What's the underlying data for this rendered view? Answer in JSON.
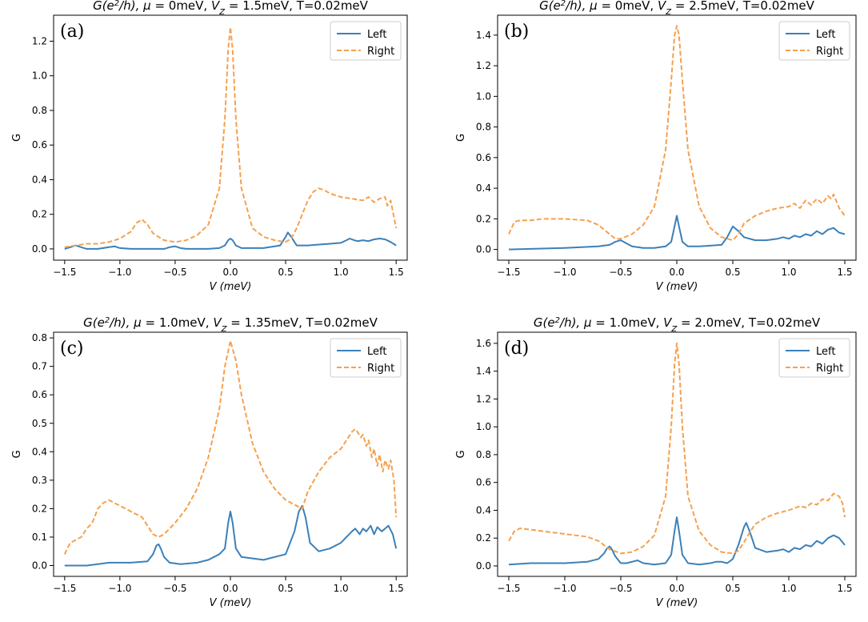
{
  "colors": {
    "left": "#3b80b9",
    "right": "#f6a04d",
    "axis": "#000000"
  },
  "chart_data": [
    {
      "type": "line",
      "panel_label": "(a)",
      "title_parts": [
        {
          "t": "G",
          "i": true
        },
        {
          "t": "(e",
          "i": true
        },
        {
          "t": "2",
          "i": true,
          "sup": true
        },
        {
          "t": "/h), ",
          "i": true
        },
        {
          "t": "μ",
          "i": true
        },
        {
          "t": " = 0meV, "
        },
        {
          "t": "V",
          "i": true
        },
        {
          "t": "Z",
          "i": true,
          "sub": true
        },
        {
          "t": " = 1.5meV, T=0.02meV"
        }
      ],
      "xlabel": "V (meV)",
      "ylabel": "G",
      "xlim": [
        -1.6,
        1.6
      ],
      "ylim": [
        -0.065,
        1.35
      ],
      "xticks": [
        -1.5,
        -1.0,
        -0.5,
        0.0,
        0.5,
        1.0,
        1.5
      ],
      "yticks": [
        0.0,
        0.2,
        0.4,
        0.6,
        0.8,
        1.0,
        1.2
      ],
      "legend": {
        "position": "upper right",
        "entries": [
          "Left",
          "Right"
        ]
      },
      "series": [
        {
          "name": "Left",
          "style": "solid",
          "x": [
            -1.5,
            -1.45,
            -1.4,
            -1.35,
            -1.3,
            -1.2,
            -1.1,
            -1.05,
            -1.0,
            -0.9,
            -0.6,
            -0.55,
            -0.5,
            -0.45,
            -0.4,
            -0.2,
            -0.1,
            -0.05,
            -0.02,
            0.0,
            0.02,
            0.05,
            0.1,
            0.3,
            0.45,
            0.5,
            0.52,
            0.55,
            0.58,
            0.6,
            0.7,
            0.8,
            0.9,
            1.0,
            1.05,
            1.08,
            1.12,
            1.15,
            1.2,
            1.25,
            1.3,
            1.35,
            1.4,
            1.45,
            1.5
          ],
          "y": [
            0.0,
            0.01,
            0.02,
            0.01,
            0.0,
            0.0,
            0.01,
            0.015,
            0.005,
            0.0,
            0.0,
            0.01,
            0.015,
            0.005,
            0.0,
            0.0,
            0.005,
            0.02,
            0.05,
            0.06,
            0.05,
            0.02,
            0.005,
            0.005,
            0.02,
            0.07,
            0.095,
            0.07,
            0.04,
            0.02,
            0.02,
            0.025,
            0.03,
            0.035,
            0.05,
            0.06,
            0.05,
            0.045,
            0.05,
            0.045,
            0.055,
            0.06,
            0.055,
            0.04,
            0.02
          ]
        },
        {
          "name": "Right",
          "style": "dashed",
          "x": [
            -1.5,
            -1.4,
            -1.3,
            -1.2,
            -1.1,
            -1.0,
            -0.9,
            -0.85,
            -0.8,
            -0.75,
            -0.7,
            -0.6,
            -0.5,
            -0.4,
            -0.3,
            -0.2,
            -0.1,
            -0.05,
            -0.02,
            0.0,
            0.02,
            0.05,
            0.1,
            0.2,
            0.3,
            0.4,
            0.5,
            0.55,
            0.6,
            0.65,
            0.7,
            0.75,
            0.8,
            0.85,
            0.9,
            1.0,
            1.1,
            1.2,
            1.25,
            1.3,
            1.35,
            1.4,
            1.42,
            1.45,
            1.5
          ],
          "y": [
            0.01,
            0.02,
            0.03,
            0.03,
            0.04,
            0.06,
            0.1,
            0.15,
            0.17,
            0.14,
            0.09,
            0.05,
            0.04,
            0.05,
            0.08,
            0.14,
            0.35,
            0.75,
            1.15,
            1.28,
            1.15,
            0.75,
            0.35,
            0.12,
            0.07,
            0.05,
            0.04,
            0.06,
            0.12,
            0.2,
            0.28,
            0.33,
            0.35,
            0.34,
            0.32,
            0.3,
            0.29,
            0.28,
            0.3,
            0.27,
            0.29,
            0.3,
            0.25,
            0.28,
            0.12
          ]
        }
      ]
    },
    {
      "type": "line",
      "panel_label": "(b)",
      "title_parts": [
        {
          "t": "G",
          "i": true
        },
        {
          "t": "(e",
          "i": true
        },
        {
          "t": "2",
          "i": true,
          "sup": true
        },
        {
          "t": "/h), ",
          "i": true
        },
        {
          "t": "μ",
          "i": true
        },
        {
          "t": " = 0meV, "
        },
        {
          "t": "V",
          "i": true
        },
        {
          "t": "Z",
          "i": true,
          "sub": true
        },
        {
          "t": " = 2.5meV, T=0.02meV"
        }
      ],
      "xlabel": "V (meV)",
      "ylabel": "G",
      "xlim": [
        -1.6,
        1.6
      ],
      "ylim": [
        -0.07,
        1.53
      ],
      "xticks": [
        -1.5,
        -1.0,
        -0.5,
        0.0,
        0.5,
        1.0,
        1.5
      ],
      "yticks": [
        0.0,
        0.2,
        0.4,
        0.6,
        0.8,
        1.0,
        1.2,
        1.4
      ],
      "legend": {
        "position": "upper right",
        "entries": [
          "Left",
          "Right"
        ]
      },
      "series": [
        {
          "name": "Left",
          "style": "solid",
          "x": [
            -1.5,
            -1.0,
            -0.7,
            -0.6,
            -0.55,
            -0.5,
            -0.45,
            -0.4,
            -0.3,
            -0.2,
            -0.1,
            -0.05,
            -0.02,
            0.0,
            0.02,
            0.05,
            0.1,
            0.2,
            0.4,
            0.45,
            0.5,
            0.55,
            0.6,
            0.7,
            0.8,
            0.9,
            0.95,
            1.0,
            1.05,
            1.1,
            1.15,
            1.2,
            1.25,
            1.3,
            1.35,
            1.4,
            1.45,
            1.5
          ],
          "y": [
            0.0,
            0.01,
            0.02,
            0.03,
            0.05,
            0.06,
            0.04,
            0.02,
            0.01,
            0.01,
            0.02,
            0.05,
            0.15,
            0.22,
            0.15,
            0.05,
            0.02,
            0.02,
            0.03,
            0.08,
            0.15,
            0.12,
            0.08,
            0.06,
            0.06,
            0.07,
            0.08,
            0.07,
            0.09,
            0.08,
            0.1,
            0.09,
            0.12,
            0.1,
            0.13,
            0.14,
            0.11,
            0.1
          ]
        },
        {
          "name": "Right",
          "style": "dashed",
          "x": [
            -1.5,
            -1.45,
            -1.4,
            -1.3,
            -1.2,
            -1.0,
            -0.8,
            -0.7,
            -0.6,
            -0.55,
            -0.5,
            -0.4,
            -0.3,
            -0.2,
            -0.1,
            -0.05,
            -0.02,
            0.0,
            0.02,
            0.05,
            0.1,
            0.2,
            0.3,
            0.4,
            0.5,
            0.55,
            0.6,
            0.7,
            0.8,
            0.9,
            1.0,
            1.05,
            1.1,
            1.15,
            1.2,
            1.25,
            1.3,
            1.35,
            1.38,
            1.4,
            1.45,
            1.5
          ],
          "y": [
            0.1,
            0.18,
            0.19,
            0.19,
            0.2,
            0.2,
            0.19,
            0.16,
            0.1,
            0.07,
            0.07,
            0.1,
            0.16,
            0.28,
            0.65,
            1.1,
            1.4,
            1.46,
            1.4,
            1.1,
            0.65,
            0.28,
            0.14,
            0.08,
            0.06,
            0.1,
            0.17,
            0.22,
            0.25,
            0.27,
            0.28,
            0.3,
            0.27,
            0.32,
            0.29,
            0.33,
            0.3,
            0.35,
            0.33,
            0.36,
            0.27,
            0.22
          ]
        }
      ]
    },
    {
      "type": "line",
      "panel_label": "(c)",
      "title_parts": [
        {
          "t": "G",
          "i": true
        },
        {
          "t": "(e",
          "i": true
        },
        {
          "t": "2",
          "i": true,
          "sup": true
        },
        {
          "t": "/h), ",
          "i": true
        },
        {
          "t": "μ",
          "i": true
        },
        {
          "t": " = 1.0meV, "
        },
        {
          "t": "V",
          "i": true
        },
        {
          "t": "Z",
          "i": true,
          "sub": true
        },
        {
          "t": " = 1.35meV, T=0.02meV"
        }
      ],
      "xlabel": "V (meV)",
      "ylabel": "G",
      "xlim": [
        -1.6,
        1.6
      ],
      "ylim": [
        -0.038,
        0.82
      ],
      "xticks": [
        -1.5,
        -1.0,
        -0.5,
        0.0,
        0.5,
        1.0,
        1.5
      ],
      "yticks": [
        0.0,
        0.1,
        0.2,
        0.3,
        0.4,
        0.5,
        0.6,
        0.7,
        0.8
      ],
      "legend": {
        "position": "upper right",
        "entries": [
          "Left",
          "Right"
        ]
      },
      "series": [
        {
          "name": "Left",
          "style": "solid",
          "x": [
            -1.5,
            -1.3,
            -1.1,
            -0.9,
            -0.75,
            -0.7,
            -0.67,
            -0.65,
            -0.63,
            -0.6,
            -0.55,
            -0.45,
            -0.3,
            -0.2,
            -0.1,
            -0.05,
            -0.02,
            0.0,
            0.02,
            0.05,
            0.1,
            0.3,
            0.5,
            0.58,
            0.62,
            0.65,
            0.68,
            0.72,
            0.8,
            0.9,
            1.0,
            1.05,
            1.1,
            1.13,
            1.17,
            1.2,
            1.23,
            1.27,
            1.3,
            1.33,
            1.37,
            1.4,
            1.43,
            1.47,
            1.5
          ],
          "y": [
            0.0,
            0.0,
            0.01,
            0.01,
            0.015,
            0.04,
            0.07,
            0.075,
            0.06,
            0.03,
            0.01,
            0.005,
            0.01,
            0.02,
            0.04,
            0.06,
            0.15,
            0.19,
            0.15,
            0.06,
            0.03,
            0.02,
            0.04,
            0.12,
            0.19,
            0.21,
            0.17,
            0.08,
            0.05,
            0.06,
            0.08,
            0.1,
            0.12,
            0.13,
            0.11,
            0.13,
            0.12,
            0.14,
            0.11,
            0.135,
            0.12,
            0.13,
            0.14,
            0.11,
            0.06
          ]
        },
        {
          "name": "Right",
          "style": "dashed",
          "x": [
            -1.5,
            -1.45,
            -1.4,
            -1.35,
            -1.3,
            -1.25,
            -1.2,
            -1.15,
            -1.1,
            -1.0,
            -0.9,
            -0.8,
            -0.75,
            -0.7,
            -0.65,
            -0.6,
            -0.5,
            -0.4,
            -0.3,
            -0.2,
            -0.1,
            -0.05,
            0.0,
            0.05,
            0.1,
            0.2,
            0.3,
            0.4,
            0.5,
            0.6,
            0.65,
            0.7,
            0.8,
            0.9,
            1.0,
            1.05,
            1.1,
            1.13,
            1.15,
            1.18,
            1.2,
            1.23,
            1.25,
            1.28,
            1.3,
            1.33,
            1.35,
            1.38,
            1.4,
            1.43,
            1.45,
            1.48,
            1.5
          ],
          "y": [
            0.04,
            0.08,
            0.09,
            0.1,
            0.13,
            0.15,
            0.2,
            0.22,
            0.23,
            0.21,
            0.19,
            0.17,
            0.14,
            0.11,
            0.1,
            0.11,
            0.15,
            0.2,
            0.27,
            0.38,
            0.55,
            0.7,
            0.79,
            0.72,
            0.6,
            0.43,
            0.33,
            0.27,
            0.23,
            0.21,
            0.2,
            0.26,
            0.33,
            0.38,
            0.41,
            0.44,
            0.47,
            0.48,
            0.47,
            0.45,
            0.46,
            0.42,
            0.44,
            0.38,
            0.41,
            0.35,
            0.39,
            0.33,
            0.37,
            0.34,
            0.37,
            0.3,
            0.17
          ]
        }
      ]
    },
    {
      "type": "line",
      "panel_label": "(d)",
      "title_parts": [
        {
          "t": "G",
          "i": true
        },
        {
          "t": "(e",
          "i": true
        },
        {
          "t": "2",
          "i": true,
          "sup": true
        },
        {
          "t": "/h), ",
          "i": true
        },
        {
          "t": "μ",
          "i": true
        },
        {
          "t": " = 1.0meV, "
        },
        {
          "t": "V",
          "i": true
        },
        {
          "t": "Z",
          "i": true,
          "sub": true
        },
        {
          "t": " = 2.0meV, T=0.02meV"
        }
      ],
      "xlabel": "V (meV)",
      "ylabel": "G",
      "xlim": [
        -1.6,
        1.6
      ],
      "ylim": [
        -0.075,
        1.68
      ],
      "xticks": [
        -1.5,
        -1.0,
        -0.5,
        0.0,
        0.5,
        1.0,
        1.5
      ],
      "yticks": [
        0.0,
        0.2,
        0.4,
        0.6,
        0.8,
        1.0,
        1.2,
        1.4,
        1.6
      ],
      "legend": {
        "position": "upper right",
        "entries": [
          "Left",
          "Right"
        ]
      },
      "series": [
        {
          "name": "Left",
          "style": "solid",
          "x": [
            -1.5,
            -1.3,
            -1.0,
            -0.8,
            -0.7,
            -0.65,
            -0.62,
            -0.6,
            -0.58,
            -0.55,
            -0.5,
            -0.45,
            -0.4,
            -0.35,
            -0.3,
            -0.2,
            -0.1,
            -0.05,
            -0.02,
            0.0,
            0.02,
            0.05,
            0.1,
            0.2,
            0.3,
            0.35,
            0.4,
            0.45,
            0.5,
            0.55,
            0.6,
            0.62,
            0.65,
            0.7,
            0.8,
            0.9,
            0.95,
            1.0,
            1.05,
            1.1,
            1.15,
            1.2,
            1.25,
            1.3,
            1.35,
            1.4,
            1.45,
            1.5
          ],
          "y": [
            0.01,
            0.02,
            0.02,
            0.03,
            0.05,
            0.09,
            0.13,
            0.14,
            0.12,
            0.07,
            0.02,
            0.02,
            0.03,
            0.04,
            0.02,
            0.01,
            0.02,
            0.08,
            0.25,
            0.35,
            0.25,
            0.08,
            0.02,
            0.01,
            0.02,
            0.03,
            0.03,
            0.02,
            0.05,
            0.15,
            0.28,
            0.31,
            0.25,
            0.13,
            0.1,
            0.11,
            0.12,
            0.1,
            0.13,
            0.12,
            0.15,
            0.14,
            0.18,
            0.16,
            0.2,
            0.22,
            0.2,
            0.15
          ]
        },
        {
          "name": "Right",
          "style": "dashed",
          "x": [
            -1.5,
            -1.45,
            -1.4,
            -1.3,
            -1.2,
            -1.0,
            -0.8,
            -0.7,
            -0.6,
            -0.5,
            -0.4,
            -0.3,
            -0.2,
            -0.1,
            -0.05,
            -0.02,
            0.0,
            0.02,
            0.05,
            0.1,
            0.2,
            0.3,
            0.4,
            0.5,
            0.55,
            0.6,
            0.65,
            0.7,
            0.8,
            0.9,
            1.0,
            1.1,
            1.15,
            1.2,
            1.25,
            1.3,
            1.35,
            1.4,
            1.45,
            1.48,
            1.5
          ],
          "y": [
            0.18,
            0.25,
            0.27,
            0.26,
            0.25,
            0.23,
            0.21,
            0.18,
            0.12,
            0.09,
            0.1,
            0.14,
            0.22,
            0.5,
            1.0,
            1.45,
            1.6,
            1.45,
            1.0,
            0.5,
            0.25,
            0.15,
            0.1,
            0.09,
            0.11,
            0.17,
            0.24,
            0.3,
            0.35,
            0.38,
            0.4,
            0.43,
            0.42,
            0.45,
            0.44,
            0.48,
            0.47,
            0.52,
            0.5,
            0.45,
            0.35
          ]
        }
      ]
    }
  ]
}
